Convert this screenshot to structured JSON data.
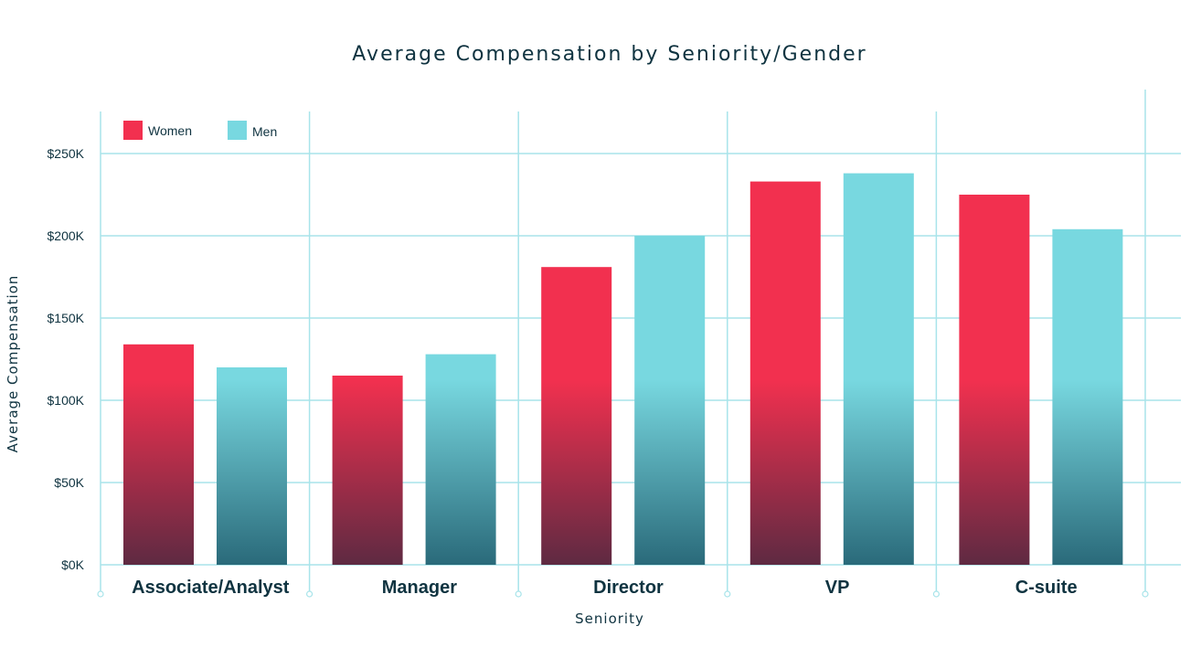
{
  "colors": {
    "women_top": "#f2304f",
    "women_bottom": "#5e2a42",
    "men_top": "#78d8e0",
    "men_bottom": "#2a6a7a",
    "grid": "#a8e4ea",
    "text": "#0f3340"
  },
  "chart_data": {
    "type": "bar",
    "title": "Average Compensation by Seniority/Gender",
    "xlabel": "Seniority",
    "ylabel": "Average Compensation",
    "categories": [
      "Associate/Analyst",
      "Manager",
      "Director",
      "VP",
      "C-suite"
    ],
    "series": [
      {
        "name": "Women",
        "values": [
          134,
          115,
          181,
          233,
          225
        ]
      },
      {
        "name": "Men",
        "values": [
          120,
          128,
          200,
          238,
          204
        ]
      }
    ],
    "ylim": [
      0,
      250
    ],
    "yticks": [
      0,
      50,
      100,
      150,
      200,
      250
    ],
    "ytick_labels": [
      "$0K",
      "$50K",
      "$100K",
      "$150K",
      "$200K",
      "$250K"
    ],
    "value_unit": "thousand USD",
    "grid": true,
    "legend_position": "top-left"
  }
}
